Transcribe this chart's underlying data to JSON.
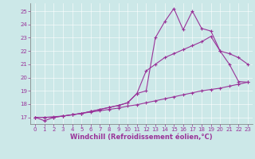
{
  "xlabel": "Windchill (Refroidissement éolien,°C)",
  "background_color": "#cce8e8",
  "line_color": "#993399",
  "xlim": [
    -0.5,
    23.5
  ],
  "ylim": [
    16.5,
    25.6
  ],
  "yticks": [
    17,
    18,
    19,
    20,
    21,
    22,
    23,
    24,
    25
  ],
  "xticks": [
    0,
    1,
    2,
    3,
    4,
    5,
    6,
    7,
    8,
    9,
    10,
    11,
    12,
    13,
    14,
    15,
    16,
    17,
    18,
    19,
    20,
    21,
    22,
    23
  ],
  "line1_x": [
    0,
    1,
    2,
    3,
    4,
    5,
    6,
    7,
    8,
    9,
    10,
    11,
    12,
    13,
    14,
    15,
    16,
    17,
    18,
    19,
    20,
    21,
    22,
    23
  ],
  "line1_y": [
    17.0,
    17.0,
    17.0,
    17.1,
    17.2,
    17.3,
    17.4,
    17.5,
    17.6,
    17.7,
    17.85,
    17.95,
    18.1,
    18.25,
    18.4,
    18.55,
    18.7,
    18.85,
    19.0,
    19.1,
    19.2,
    19.35,
    19.5,
    19.65
  ],
  "line2_x": [
    0,
    1,
    2,
    3,
    4,
    5,
    6,
    7,
    8,
    9,
    10,
    11,
    12,
    13,
    14,
    15,
    16,
    17,
    18,
    19,
    20,
    21,
    22,
    23
  ],
  "line2_y": [
    17.0,
    17.0,
    17.05,
    17.1,
    17.2,
    17.3,
    17.45,
    17.6,
    17.75,
    17.9,
    18.1,
    18.8,
    20.5,
    21.0,
    21.5,
    21.8,
    22.1,
    22.4,
    22.7,
    23.1,
    22.0,
    21.8,
    21.5,
    21.0
  ],
  "line3_x": [
    0,
    1,
    2,
    3,
    4,
    5,
    6,
    7,
    8,
    9,
    10,
    11,
    12,
    13,
    14,
    15,
    16,
    17,
    18,
    19,
    20,
    21,
    22,
    23
  ],
  "line3_y": [
    17.0,
    16.75,
    17.0,
    17.1,
    17.2,
    17.3,
    17.45,
    17.6,
    17.75,
    17.9,
    18.1,
    18.8,
    19.0,
    23.0,
    24.2,
    25.2,
    23.6,
    25.0,
    23.7,
    23.5,
    22.0,
    21.0,
    19.7,
    19.65
  ],
  "marker": "+",
  "markersize": 3,
  "linewidth": 0.8,
  "grid_color": "#aacccc",
  "tick_fontsize": 5,
  "xlabel_fontsize": 6
}
